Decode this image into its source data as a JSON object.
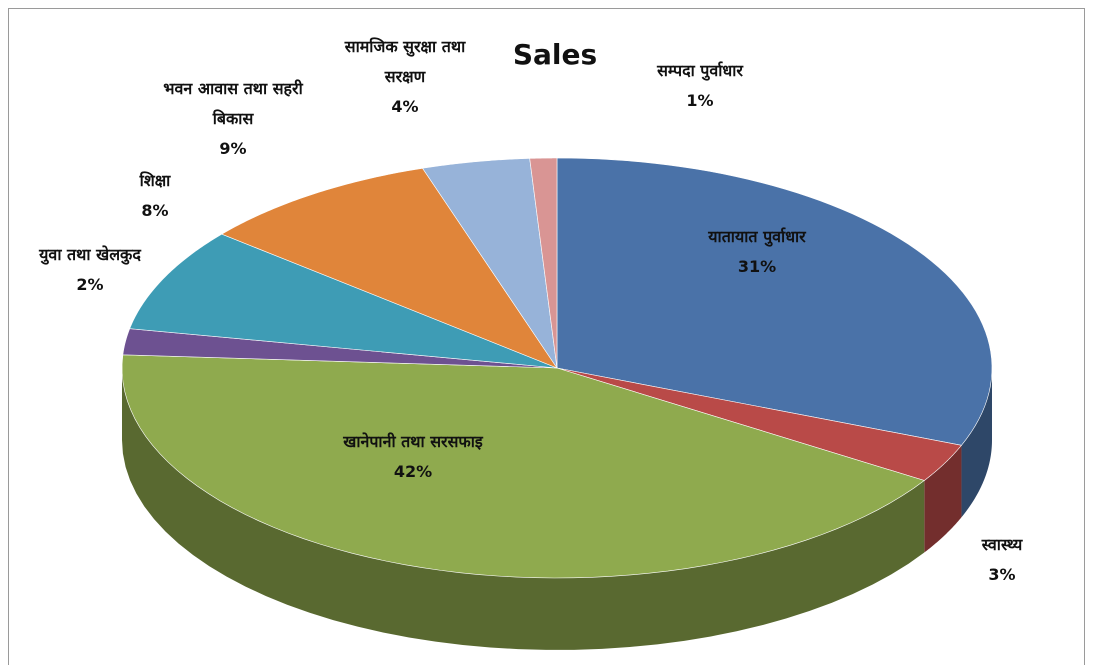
{
  "chart_data": {
    "type": "pie",
    "title": "Sales",
    "categories": [
      "यातायात पुर्वाधार",
      "स्वास्थ्य",
      "खानेपानी तथा सरसफाइ",
      "युवा तथा खेलकुद",
      "शिक्षा",
      "भवन आवास तथा सहरी बिकास",
      "सामजिक सुरक्षा तथा सरक्षण",
      "सम्पदा पुर्वाधार"
    ],
    "values": [
      31,
      3,
      42,
      2,
      8,
      9,
      4,
      1
    ],
    "value_labels": [
      "31%",
      "3%",
      "42%",
      "2%",
      "8%",
      "9%",
      "4%",
      "1%"
    ],
    "colors": [
      "#4a72a8",
      "#b94a48",
      "#8faa4e",
      "#6d5191",
      "#3e9cb5",
      "#e0853a",
      "#97b3d9",
      "#d99594"
    ]
  }
}
